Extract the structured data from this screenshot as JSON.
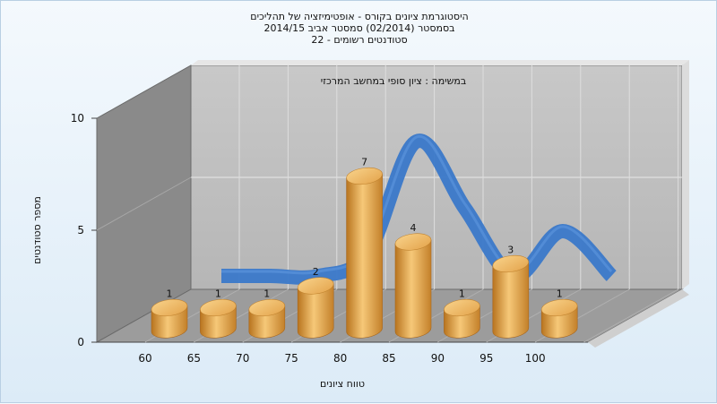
{
  "title_lines": [
    "היסטוגרמת ציונים בקורס - אופטימיזציה של תהליכים",
    "בסמסטר (02/2014) סמסטר אביב 2014/15",
    "סטודנטים רשומים - 22"
  ],
  "chart_data": {
    "type": "bar",
    "subtitle": "במשימה : ציון סופי במחשב המרכזי",
    "xlabel": "טווח ציונים",
    "ylabel": "מספר סטודנטים",
    "categories": [
      "60",
      "65",
      "70",
      "75",
      "80",
      "85",
      "90",
      "95",
      "100"
    ],
    "values": [
      1,
      1,
      1,
      2,
      7,
      4,
      1,
      3,
      1
    ],
    "ylim": [
      0,
      10
    ],
    "yticks": [
      "0",
      "5",
      "10"
    ],
    "grid": true,
    "colors": {
      "bar": "#e2a14a",
      "curve": "#3a78c9",
      "wall": "#c0c0c0",
      "side_wall": "#8c8c8c",
      "floor": "#9a9a9a"
    }
  }
}
